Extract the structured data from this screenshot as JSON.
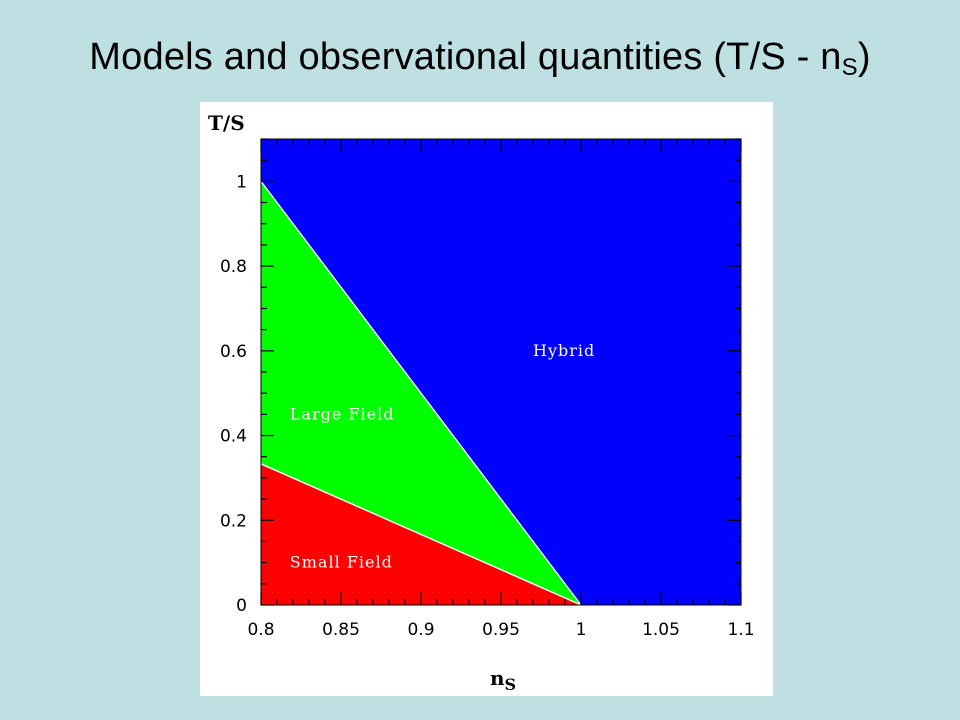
{
  "slide": {
    "title_main": "Models and observational quantities (T/S - n",
    "title_sub": "S",
    "title_close": ")"
  },
  "chart_data": {
    "type": "area",
    "xlabel_main": "n",
    "xlabel_sub": "S",
    "ylabel": "T/S",
    "xlim": [
      0.8,
      1.1
    ],
    "ylim": [
      0,
      1.1
    ],
    "x_ticks": [
      "0.8",
      "0.85",
      "0.9",
      "0.95",
      "1",
      "1.05",
      "1.1"
    ],
    "x_tick_values": [
      0.8,
      0.85,
      0.9,
      0.95,
      1.0,
      1.05,
      1.1
    ],
    "y_ticks": [
      "0",
      "0.2",
      "0.4",
      "0.6",
      "0.8",
      "1"
    ],
    "y_tick_values": [
      0,
      0.2,
      0.4,
      0.6,
      0.8,
      1.0
    ],
    "regions": [
      {
        "name": "Hybrid",
        "label": "Hybrid",
        "color": "#0000ff",
        "polygon": [
          [
            0.8,
            1.0
          ],
          [
            0.8,
            1.1
          ],
          [
            1.1,
            1.1
          ],
          [
            1.1,
            0
          ],
          [
            1.0,
            0
          ]
        ],
        "label_at": [
          0.97,
          0.6
        ]
      },
      {
        "name": "Large Field",
        "label": "Large Field",
        "color": "#00ff00",
        "polygon": [
          [
            0.8,
            0.333
          ],
          [
            0.8,
            1.0
          ],
          [
            1.0,
            0
          ]
        ],
        "label_at": [
          0.818,
          0.45
        ]
      },
      {
        "name": "Small Field",
        "label": "Small Field",
        "color": "#ff0000",
        "polygon": [
          [
            0.8,
            0
          ],
          [
            0.8,
            0.333
          ],
          [
            1.0,
            0
          ]
        ],
        "label_at": [
          0.818,
          0.1
        ]
      }
    ],
    "boundaries": [
      {
        "name": "large-hybrid",
        "points": [
          [
            0.8,
            1.0
          ],
          [
            1.0,
            0
          ]
        ]
      },
      {
        "name": "small-large",
        "points": [
          [
            0.8,
            0.333
          ],
          [
            1.0,
            0
          ]
        ]
      }
    ],
    "grid": false,
    "legend": "none"
  }
}
